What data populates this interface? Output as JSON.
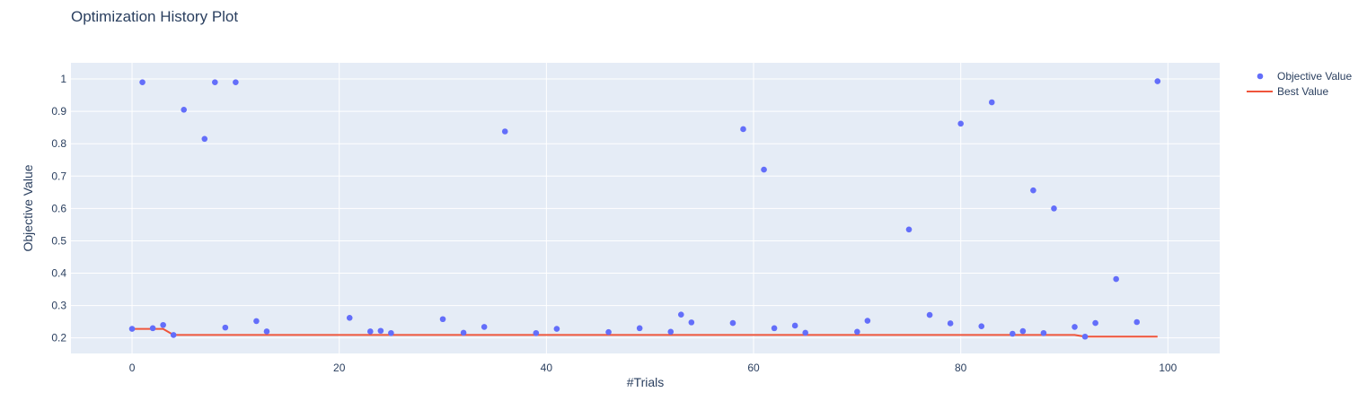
{
  "chart_data": {
    "type": "scatter",
    "title": "Optimization History Plot",
    "xlabel": "#Trials",
    "ylabel": "Objective Value",
    "xlim": [
      -5.9,
      105
    ],
    "ylim": [
      0.152,
      1.05
    ],
    "x_ticks": [
      0,
      20,
      40,
      60,
      80,
      100
    ],
    "y_ticks": [
      0.2,
      0.3,
      0.4,
      0.5,
      0.6,
      0.7,
      0.8,
      0.9,
      1
    ],
    "x_tick_labels": [
      "0",
      "20",
      "40",
      "60",
      "80",
      "100"
    ],
    "y_tick_labels": [
      "0.2",
      "0.3",
      "0.4",
      "0.5",
      "0.6",
      "0.7",
      "0.8",
      "0.9",
      "1"
    ],
    "grid": true,
    "legend_position": "top-right",
    "colors": {
      "plot_bg": "#e5ecf6",
      "grid": "#ffffff",
      "objective": "#636efa",
      "best": "#ef553b"
    },
    "series": [
      {
        "name": "Objective Value",
        "mode": "markers",
        "x": [
          0,
          1,
          2,
          3,
          4,
          5,
          7,
          8,
          9,
          10,
          12,
          13,
          21,
          23,
          24,
          25,
          30,
          32,
          34,
          36,
          39,
          41,
          46,
          49,
          52,
          53,
          54,
          58,
          59,
          61,
          62,
          64,
          65,
          70,
          71,
          75,
          77,
          79,
          80,
          82,
          83,
          85,
          86,
          87,
          88,
          89,
          91,
          92,
          93,
          95,
          97,
          99
        ],
        "y": [
          0.228,
          0.99,
          0.23,
          0.24,
          0.209,
          0.905,
          0.815,
          0.99,
          0.232,
          0.99,
          0.252,
          0.22,
          0.262,
          0.22,
          0.222,
          0.215,
          0.258,
          0.216,
          0.234,
          0.838,
          0.215,
          0.228,
          0.218,
          0.23,
          0.219,
          0.272,
          0.248,
          0.246,
          0.845,
          0.72,
          0.23,
          0.238,
          0.216,
          0.219,
          0.253,
          0.535,
          0.271,
          0.245,
          0.862,
          0.236,
          0.928,
          0.213,
          0.221,
          0.656,
          0.215,
          0.6,
          0.234,
          0.204,
          0.246,
          0.382,
          0.249,
          0.993
        ]
      },
      {
        "name": "Best Value",
        "mode": "lines",
        "x": [
          0,
          2,
          3,
          4,
          91,
          92,
          99
        ],
        "y": [
          0.228,
          0.228,
          0.228,
          0.209,
          0.209,
          0.204,
          0.204
        ]
      }
    ]
  }
}
